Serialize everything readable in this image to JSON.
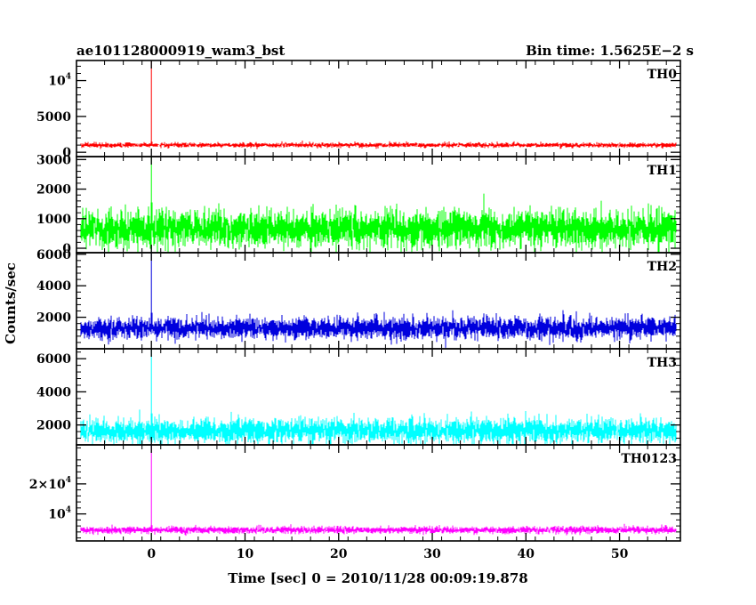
{
  "header": {
    "title": "ae101128000919_wam3_bst",
    "bin_time": "Bin time: 1.5625E−2 s"
  },
  "chart_data": {
    "type": "line",
    "xlabel": "Time [sec] 0 = 2010/11/28 00:09:19.878",
    "ylabel": "Counts/sec",
    "xlim": [
      -8.0,
      56.5
    ],
    "x_range_data": [
      -7.5,
      56.0
    ],
    "x_ticks": [
      0,
      10,
      20,
      30,
      40,
      50
    ],
    "x_tick_labels": [
      "0",
      "10",
      "20",
      "30",
      "40",
      "50"
    ],
    "bin_time_s": 0.015625,
    "panels": [
      {
        "name": "TH0",
        "color": "#ff0000",
        "ylim": [
          -600,
          12800
        ],
        "y_ticks": [
          0,
          5000,
          10000
        ],
        "y_tick_labels": [
          {
            "base": "0"
          },
          {
            "base": "5000"
          },
          {
            "base": "10",
            "exp": "4"
          }
        ],
        "baseline": 1000,
        "noise_sd": 160,
        "peak_value": 12800
      },
      {
        "name": "TH1",
        "color": "#00ff00",
        "ylim": [
          -150,
          3100
        ],
        "y_ticks": [
          0,
          1000,
          2000,
          3000
        ],
        "y_tick_labels": [
          {
            "base": "0"
          },
          {
            "base": "1000"
          },
          {
            "base": "2000"
          },
          {
            "base": "3000"
          }
        ],
        "baseline": 650,
        "noise_sd": 300,
        "peak_value": 3100
      },
      {
        "name": "TH2",
        "color": "#0000dd",
        "ylim": [
          0,
          6100
        ],
        "y_ticks": [
          2000,
          4000,
          6000
        ],
        "y_tick_labels": [
          {
            "base": "2000"
          },
          {
            "base": "4000"
          },
          {
            "base": "6000"
          }
        ],
        "baseline": 1300,
        "noise_sd": 330,
        "peak_value": 6100
      },
      {
        "name": "TH3",
        "color": "#00ffff",
        "ylim": [
          800,
          6600
        ],
        "y_ticks": [
          2000,
          4000,
          6000
        ],
        "y_tick_labels": [
          {
            "base": "2000"
          },
          {
            "base": "4000"
          },
          {
            "base": "6000"
          }
        ],
        "baseline": 1650,
        "noise_sd": 350,
        "peak_value": 6600
      },
      {
        "name": "TH0123",
        "color": "#ff00ff",
        "ylim": [
          1000,
          33000
        ],
        "y_ticks": [
          10000,
          20000
        ],
        "y_tick_labels": [
          {
            "base": "10",
            "exp": "4"
          },
          {
            "base": "2×10",
            "exp": "4"
          }
        ],
        "baseline": 4600,
        "noise_sd": 550,
        "peak_value": 33000
      }
    ]
  }
}
